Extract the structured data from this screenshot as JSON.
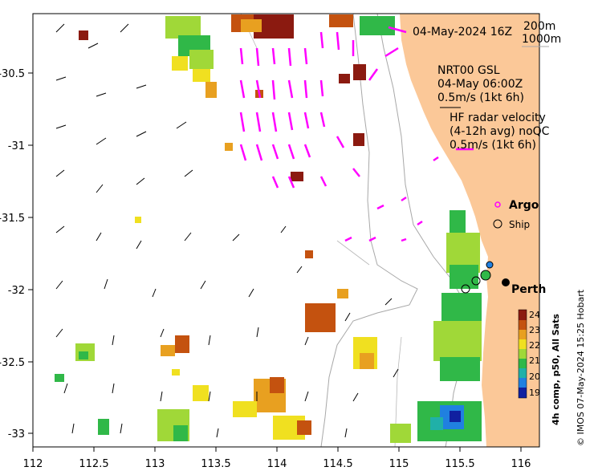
{
  "map": {
    "title_time": "04-May-2024 16Z",
    "depth_contours": [
      "200m",
      "1000m"
    ],
    "model": {
      "name": "NRT00 GSL",
      "time": "04-May 06:00Z",
      "scale": "0.5m/s (1kt 6h)"
    },
    "radar": {
      "title": "HF radar velocity",
      "subtitle": "(4-12h avg) noQC",
      "scale": "0.5m/s (1kt 6h)"
    },
    "legend": {
      "argo": "Argo",
      "ship": "Ship"
    },
    "city": "Perth",
    "x_ticks": [
      "112",
      "112.5",
      "113",
      "113.5",
      "114",
      "114.5",
      "115",
      "115.5",
      "116"
    ],
    "y_ticks": [
      "-30.5",
      "-31",
      "-31.5",
      "-32",
      "-32.5",
      "-33"
    ],
    "colorbar": {
      "title": "4h comp, p50, All Sats",
      "ticks": [
        "24",
        "23",
        "22",
        "21",
        "20",
        "19"
      ],
      "colors": [
        "#8b1a10",
        "#c4520f",
        "#e8a020",
        "#f0e020",
        "#a0d838",
        "#30b848",
        "#20b0a8",
        "#2080e0",
        "#1020a0"
      ]
    },
    "credit": "© IMOS 07-May-2024 15:25 Hobart",
    "colors": {
      "land": "#fbc898",
      "radar": "#ff00ff",
      "argo": "#ff00ff"
    }
  }
}
